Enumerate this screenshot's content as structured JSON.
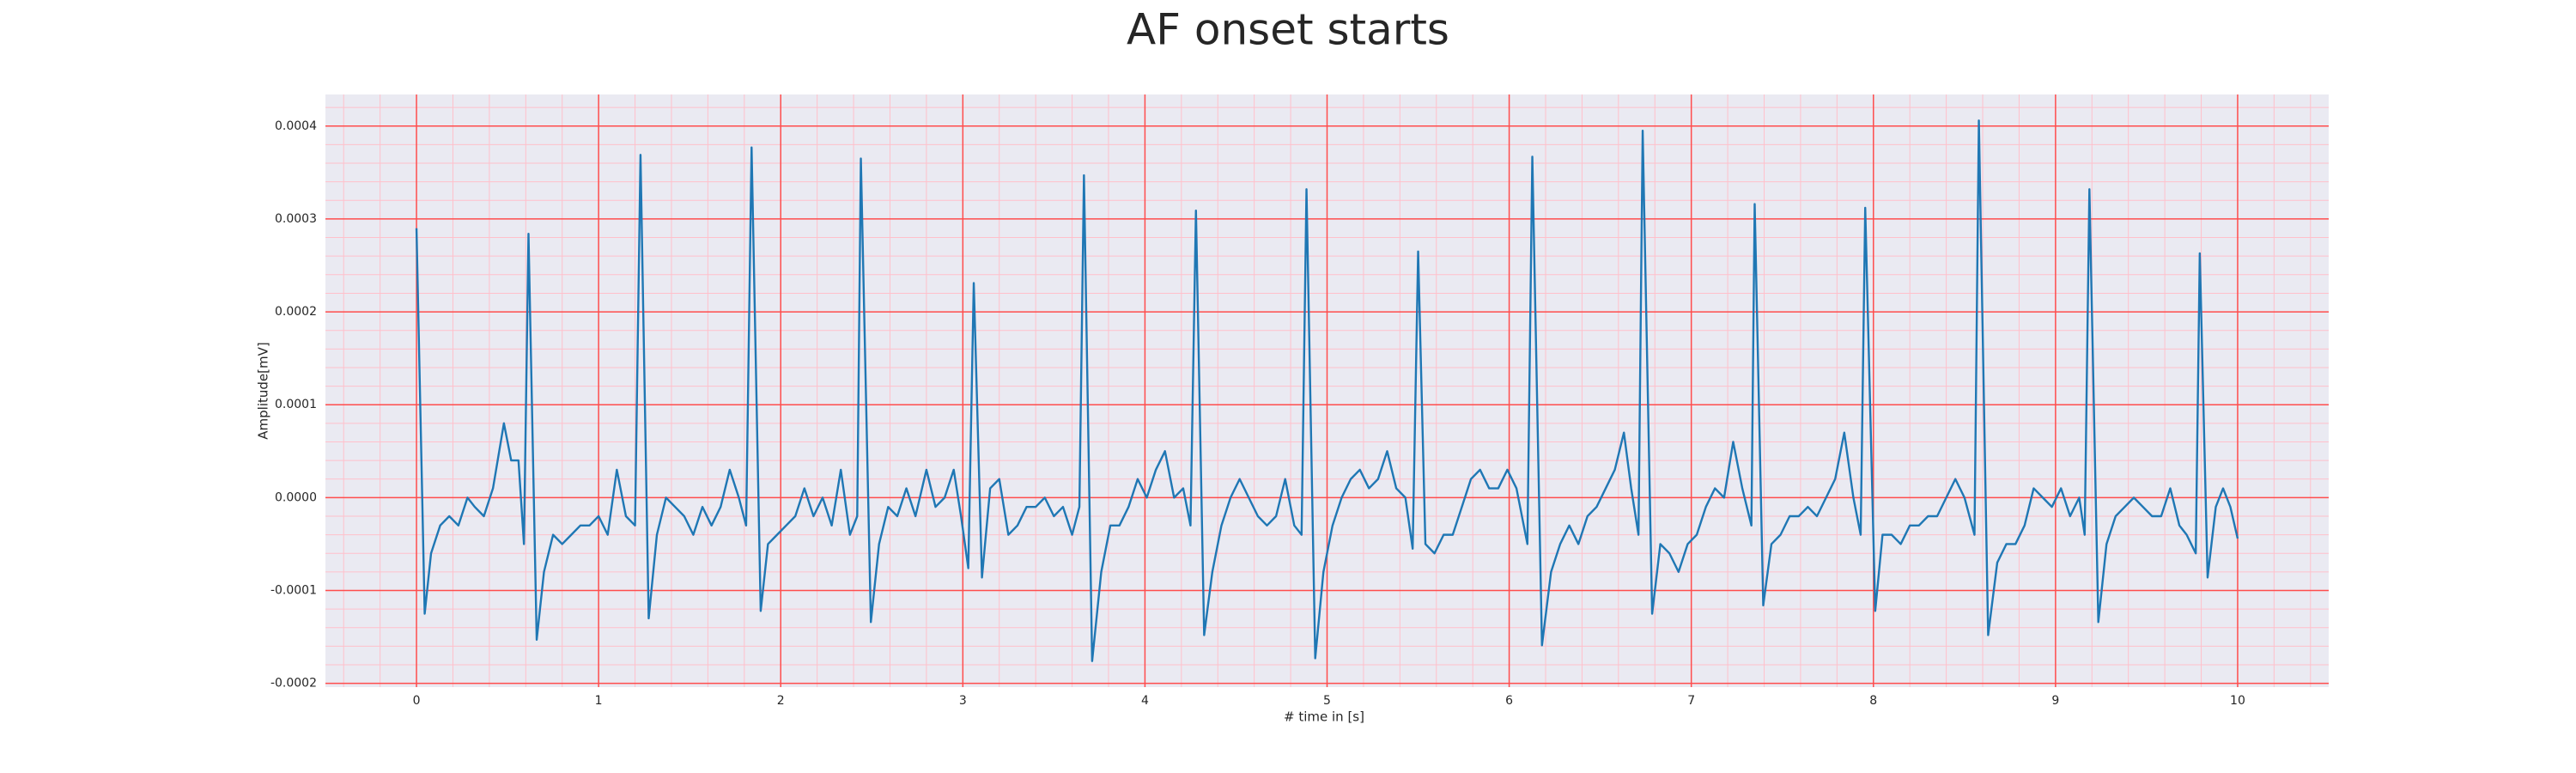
{
  "chart_data": {
    "type": "line",
    "title": "AF onset starts",
    "xlabel": "# time in [s]",
    "ylabel": "Amplitude[mV]",
    "xlim": [
      -0.5,
      10.5
    ],
    "ylim": [
      -0.000204,
      0.000434
    ],
    "xticks": [
      0,
      1,
      2,
      3,
      4,
      5,
      6,
      7,
      8,
      9,
      10
    ],
    "yticks": [
      -0.0002,
      -0.0001,
      {
        "value": 0,
        "label": "0.0000"
      },
      0.0001,
      0.0002,
      0.0003,
      0.0004
    ],
    "xminorticks": [
      -0.4,
      -0.2,
      0.2,
      0.4,
      0.6,
      0.8,
      1.2,
      1.4,
      1.6,
      1.8,
      2.2,
      2.4,
      2.6,
      2.8,
      3.2,
      3.4,
      3.6,
      3.8,
      4.2,
      4.4,
      4.6,
      4.8,
      5.2,
      5.4,
      5.6,
      5.8,
      6.2,
      6.4,
      6.6,
      6.8,
      7.2,
      7.4,
      7.6,
      7.8,
      8.2,
      8.4,
      8.6,
      8.8,
      9.2,
      9.4,
      9.6,
      9.8,
      10.2,
      10.4
    ],
    "yminorticks": [
      -0.00018,
      -0.00016,
      -0.00014,
      -0.00012,
      -8e-05,
      -6e-05,
      -4e-05,
      -2e-05,
      2e-05,
      4e-05,
      6e-05,
      8e-05,
      0.00012,
      0.00014,
      0.00016,
      0.00018,
      0.00022,
      0.00024,
      0.00026,
      0.00028,
      0.00032,
      0.00034,
      0.00036,
      0.00038,
      0.00042
    ],
    "grid": true,
    "minor_grid": true,
    "grid_color": "#ff4d4d",
    "minor_grid_color": "#ffc0cb",
    "background": "#eaeaf2",
    "series": [
      {
        "color": "#1f77b4",
        "x": [
          0,
          0.045,
          0.08,
          0.13,
          0.18,
          0.23,
          0.28,
          0.32,
          0.37,
          0.42,
          0.48,
          0.52,
          0.56,
          0.59,
          0.615,
          0.66,
          0.7,
          0.75,
          0.8,
          0.85,
          0.9,
          0.95,
          1.0,
          1.05,
          1.1,
          1.15,
          1.2,
          1.23,
          1.275,
          1.32,
          1.37,
          1.42,
          1.47,
          1.52,
          1.57,
          1.62,
          1.67,
          1.72,
          1.77,
          1.81,
          1.84,
          1.89,
          1.93,
          1.98,
          2.03,
          2.08,
          2.13,
          2.18,
          2.23,
          2.28,
          2.33,
          2.38,
          2.42,
          2.44,
          2.495,
          2.54,
          2.59,
          2.64,
          2.69,
          2.74,
          2.8,
          2.85,
          2.9,
          2.95,
          2.99,
          3.03,
          3.06,
          3.105,
          3.15,
          3.2,
          3.25,
          3.3,
          3.35,
          3.4,
          3.45,
          3.5,
          3.55,
          3.6,
          3.64,
          3.665,
          3.71,
          3.76,
          3.81,
          3.86,
          3.91,
          3.96,
          4.01,
          4.06,
          4.11,
          4.16,
          4.21,
          4.25,
          4.28,
          4.325,
          4.37,
          4.42,
          4.47,
          4.52,
          4.57,
          4.62,
          4.67,
          4.72,
          4.77,
          4.82,
          4.86,
          4.887,
          4.935,
          4.98,
          5.03,
          5.08,
          5.13,
          5.18,
          5.23,
          5.28,
          5.33,
          5.38,
          5.43,
          5.47,
          5.5,
          5.54,
          5.59,
          5.64,
          5.69,
          5.74,
          5.79,
          5.84,
          5.89,
          5.94,
          5.99,
          6.04,
          6.1,
          6.127,
          6.18,
          6.23,
          6.28,
          6.33,
          6.38,
          6.43,
          6.48,
          6.53,
          6.58,
          6.63,
          6.67,
          6.71,
          6.733,
          6.785,
          6.83,
          6.88,
          6.93,
          6.98,
          7.03,
          7.08,
          7.13,
          7.18,
          7.23,
          7.28,
          7.33,
          7.348,
          7.395,
          7.44,
          7.49,
          7.54,
          7.59,
          7.64,
          7.69,
          7.74,
          7.79,
          7.84,
          7.89,
          7.93,
          7.955,
          8.01,
          8.05,
          8.1,
          8.15,
          8.2,
          8.25,
          8.3,
          8.35,
          8.4,
          8.45,
          8.5,
          8.555,
          8.579,
          8.63,
          8.68,
          8.73,
          8.78,
          8.83,
          8.88,
          8.93,
          8.98,
          9.03,
          9.08,
          9.13,
          9.16,
          9.186,
          9.235,
          9.28,
          9.33,
          9.38,
          9.43,
          9.48,
          9.53,
          9.58,
          9.63,
          9.68,
          9.72,
          9.77,
          9.792,
          9.835,
          9.88,
          9.92,
          9.96,
          10.0
        ],
        "values": [
          0.00029,
          -0.000125,
          -6e-05,
          -3e-05,
          -2e-05,
          -3e-05,
          0.0,
          -1e-05,
          -2e-05,
          1e-05,
          8e-05,
          4e-05,
          4e-05,
          -5e-05,
          0.000284,
          -0.000153,
          -8e-05,
          -4e-05,
          -5e-05,
          -4e-05,
          -3e-05,
          -3e-05,
          -2e-05,
          -4e-05,
          3e-05,
          -2e-05,
          -3e-05,
          0.000369,
          -0.00013,
          -4e-05,
          0.0,
          -1e-05,
          -2e-05,
          -4e-05,
          -1e-05,
          -3e-05,
          -1e-05,
          3e-05,
          0.0,
          -3e-05,
          0.000377,
          -0.000122,
          -5e-05,
          -4e-05,
          -3e-05,
          -2e-05,
          1e-05,
          -2e-05,
          0.0,
          -3e-05,
          3e-05,
          -4e-05,
          -2e-05,
          0.000365,
          -0.000134,
          -5e-05,
          -1e-05,
          -2e-05,
          1e-05,
          -2e-05,
          3e-05,
          -1e-05,
          0.0,
          3e-05,
          -2e-05,
          -7.6e-05,
          0.000231,
          -8.6e-05,
          1e-05,
          2e-05,
          -4e-05,
          -3e-05,
          -1e-05,
          -1e-05,
          0.0,
          -2e-05,
          -1e-05,
          -4e-05,
          -1e-05,
          0.000347,
          -0.000176,
          -8e-05,
          -3e-05,
          -3e-05,
          -1e-05,
          2e-05,
          0.0,
          3e-05,
          5e-05,
          0.0,
          1e-05,
          -3e-05,
          0.000309,
          -0.000148,
          -8e-05,
          -3e-05,
          0.0,
          2e-05,
          0.0,
          -2e-05,
          -3e-05,
          -2e-05,
          2e-05,
          -3e-05,
          -4e-05,
          0.000332,
          -0.000173,
          -8e-05,
          -3e-05,
          0.0,
          2e-05,
          3e-05,
          1e-05,
          2e-05,
          5e-05,
          1e-05,
          0.0,
          -5.5e-05,
          0.000265,
          -5e-05,
          -6e-05,
          -4e-05,
          -4e-05,
          -1e-05,
          2e-05,
          3e-05,
          1e-05,
          1e-05,
          3e-05,
          1e-05,
          -5e-05,
          0.000367,
          -0.000159,
          -8e-05,
          -5e-05,
          -3e-05,
          -5e-05,
          -2e-05,
          -1e-05,
          1e-05,
          3e-05,
          7e-05,
          1e-05,
          -4e-05,
          0.000395,
          -0.000125,
          -5e-05,
          -6e-05,
          -8e-05,
          -5e-05,
          -4e-05,
          -1e-05,
          1e-05,
          0.0,
          6e-05,
          1e-05,
          -3e-05,
          0.000316,
          -0.000116,
          -5e-05,
          -4e-05,
          -2e-05,
          -2e-05,
          -1e-05,
          -2e-05,
          0.0,
          2e-05,
          7e-05,
          0.0,
          -4e-05,
          0.000312,
          -0.000122,
          -4e-05,
          -4e-05,
          -5e-05,
          -3e-05,
          -3e-05,
          -2e-05,
          -2e-05,
          0.0,
          2e-05,
          0.0,
          -4e-05,
          0.000406,
          -0.000148,
          -7e-05,
          -5e-05,
          -5e-05,
          -3e-05,
          1e-05,
          0.0,
          -1e-05,
          1e-05,
          -2e-05,
          0.0,
          -4e-05,
          0.000332,
          -0.000134,
          -5e-05,
          -2e-05,
          -1e-05,
          0.0,
          -1e-05,
          -2e-05,
          -2e-05,
          1e-05,
          -3e-05,
          -4e-05,
          -6e-05,
          0.000263,
          -8.6e-05,
          -1e-05,
          1e-05,
          -1e-05,
          -4.4e-05
        ]
      }
    ]
  }
}
